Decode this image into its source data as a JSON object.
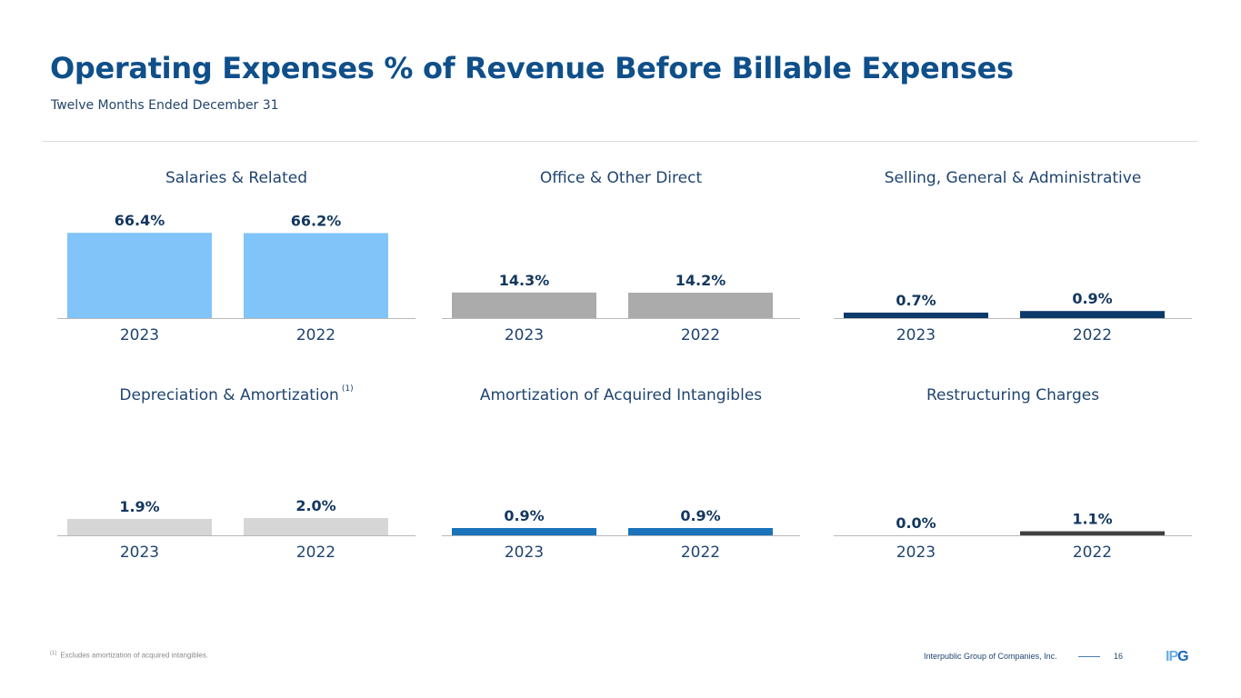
{
  "header": {
    "title": "Operating Expenses % of Revenue Before Billable Expenses",
    "subtitle": "Twelve Months Ended December 31"
  },
  "chart_data": [
    {
      "type": "bar",
      "title": "Salaries & Related",
      "footnote_marker": "",
      "categories": [
        "2023",
        "2022"
      ],
      "values": [
        66.4,
        66.2
      ],
      "labels": [
        "66.4%",
        "66.2%"
      ],
      "ylim": [
        0,
        92
      ],
      "color": "#80c4fa",
      "xlabel": "",
      "ylabel": "",
      "grid": false
    },
    {
      "type": "bar",
      "title": "Office & Other Direct",
      "footnote_marker": "",
      "categories": [
        "2023",
        "2022"
      ],
      "values": [
        14.3,
        14.2
      ],
      "labels": [
        "14.3%",
        "14.2%"
      ],
      "ylim": [
        0,
        66
      ],
      "color": "#ababab",
      "xlabel": "",
      "ylabel": "",
      "grid": false
    },
    {
      "type": "bar",
      "title": "Selling, General & Administrative",
      "footnote_marker": "",
      "categories": [
        "2023",
        "2022"
      ],
      "values": [
        0.7,
        0.9
      ],
      "labels": [
        "0.7%",
        "0.9%"
      ],
      "ylim": [
        0,
        15
      ],
      "color": "#0c3a6a",
      "xlabel": "",
      "ylabel": "",
      "grid": false
    },
    {
      "type": "bar",
      "title": "Depreciation & Amortization",
      "footnote_marker": "(1)",
      "categories": [
        "2023",
        "2022"
      ],
      "values": [
        1.9,
        2.0
      ],
      "labels": [
        "1.9%",
        "2.0%"
      ],
      "ylim": [
        0,
        13.7
      ],
      "color": "#d6d6d6",
      "xlabel": "",
      "ylabel": "",
      "grid": false
    },
    {
      "type": "bar",
      "title": "Amortization of Acquired Intangibles",
      "footnote_marker": "",
      "categories": [
        "2023",
        "2022"
      ],
      "values": [
        0.9,
        0.9
      ],
      "labels": [
        "0.9%",
        "0.9%"
      ],
      "ylim": [
        0,
        14.6
      ],
      "color": "#1a73bb",
      "xlabel": "",
      "ylabel": "",
      "grid": false
    },
    {
      "type": "bar",
      "title": "Restructuring Charges",
      "footnote_marker": "",
      "categories": [
        "2023",
        "2022"
      ],
      "values": [
        0.0,
        1.1
      ],
      "labels": [
        "0.0%",
        "1.1%"
      ],
      "ylim": [
        0,
        32
      ],
      "color": "#404040",
      "xlabel": "",
      "ylabel": "",
      "grid": false
    }
  ],
  "colors": {
    "title": "#0f4f8a",
    "value_label": "#13375f",
    "axis_label": "#1f4470",
    "baseline": "#b8b8b8"
  },
  "footer": {
    "footnote_marker": "(1)",
    "footnote_text": "Excludes amortization of acquired intangibles.",
    "company": "Interpublic Group of Companies, Inc.",
    "page_number": "16",
    "logo_left": "IP",
    "logo_right": "G"
  }
}
